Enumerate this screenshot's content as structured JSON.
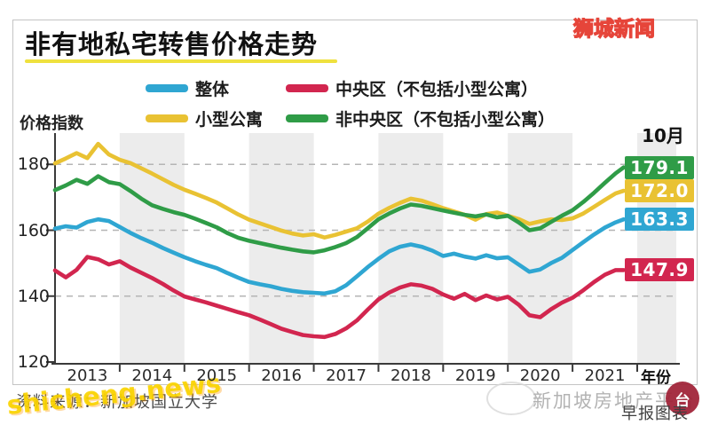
{
  "title": "非有地私宅转售价格走势",
  "brand_watermark": "狮城新闻",
  "diag_watermark": "shicheng.news",
  "source_note": "资料来源：新加坡国立大学",
  "platform_watermark": "新加坡房地产平台",
  "seal_char": "台",
  "credit": "早报图表",
  "y_axis_label": "价格指数",
  "x_axis_label": "年份",
  "end_month_label": "10月",
  "legend": {
    "items": [
      {
        "label": "整体",
        "color": "#2FA6D2"
      },
      {
        "label": "中央区（不包括小型公寓）",
        "color": "#D2264F"
      },
      {
        "label": "小型公寓",
        "color": "#E9C233"
      },
      {
        "label": "非中央区（不包括小型公寓）",
        "color": "#2F9C47"
      }
    ]
  },
  "chart_data": {
    "type": "line",
    "title": "非有地私宅转售价格走势",
    "xlabel": "年份",
    "ylabel": "价格指数",
    "ylim": [
      120,
      189
    ],
    "y_ticks": [
      120,
      140,
      160,
      180
    ],
    "x_tick_years": [
      "2013",
      "2014",
      "2015",
      "2016",
      "2017",
      "2018",
      "2019",
      "2020",
      "2021"
    ],
    "shaded_band_years": [
      "2014",
      "2016",
      "2018",
      "2020"
    ],
    "grid": "dashed-horizontal",
    "x_unit": "months_since_jan_2013",
    "end_point_label": "10月",
    "x_months": [
      0,
      2,
      4,
      6,
      8,
      10,
      12,
      14,
      16,
      18,
      20,
      22,
      24,
      26,
      28,
      30,
      32,
      34,
      36,
      38,
      40,
      42,
      44,
      46,
      48,
      50,
      52,
      54,
      56,
      58,
      60,
      62,
      64,
      66,
      68,
      70,
      72,
      74,
      76,
      78,
      80,
      82,
      84,
      86,
      88,
      90,
      92,
      94,
      96,
      98,
      100,
      102,
      104,
      105.5
    ],
    "series": [
      {
        "name": "整体",
        "color": "#2FA6D2",
        "end_label": "163.3",
        "end_value": 163.3,
        "values": [
          160.5,
          161.2,
          160.8,
          162.5,
          163.3,
          162.8,
          161.0,
          159.2,
          157.6,
          156.2,
          154.6,
          153.2,
          151.8,
          150.6,
          149.5,
          148.5,
          147.0,
          145.6,
          144.3,
          143.6,
          143.0,
          142.2,
          141.6,
          141.2,
          141.0,
          140.8,
          141.5,
          143.3,
          146.0,
          148.8,
          151.3,
          153.6,
          155.0,
          155.7,
          155.0,
          153.8,
          152.2,
          152.9,
          152.0,
          151.4,
          152.4,
          151.5,
          151.8,
          149.6,
          147.4,
          148.1,
          150.0,
          151.6,
          154.0,
          156.4,
          158.7,
          160.8,
          162.4,
          163.3
        ]
      },
      {
        "name": "小型公寓",
        "color": "#E9C233",
        "end_label": "172.0",
        "end_value": 172.0,
        "values": [
          180.3,
          181.8,
          183.4,
          181.9,
          186.2,
          183.0,
          181.4,
          180.4,
          178.8,
          177.2,
          175.5,
          173.8,
          172.3,
          171.1,
          169.8,
          168.4,
          166.6,
          164.8,
          163.2,
          162.1,
          161.0,
          159.9,
          159.0,
          158.4,
          158.8,
          157.8,
          158.6,
          159.6,
          160.6,
          162.6,
          165.0,
          166.8,
          168.3,
          169.6,
          169.0,
          167.9,
          166.7,
          165.7,
          164.7,
          163.2,
          164.9,
          165.4,
          164.4,
          163.4,
          161.9,
          162.7,
          163.3,
          163.1,
          163.6,
          165.1,
          167.1,
          169.2,
          171.2,
          172.0
        ]
      },
      {
        "name": "中央区（不包括小型公寓）",
        "color": "#D2264F",
        "end_label": "147.9",
        "end_value": 147.9,
        "values": [
          147.8,
          145.7,
          148.0,
          151.9,
          151.2,
          149.6,
          150.6,
          148.7,
          147.1,
          145.5,
          143.7,
          141.7,
          139.9,
          139.0,
          138.1,
          137.1,
          136.1,
          135.1,
          134.2,
          132.9,
          131.5,
          130.1,
          129.1,
          128.2,
          127.8,
          127.6,
          128.5,
          130.2,
          132.6,
          135.9,
          139.0,
          141.1,
          142.6,
          143.6,
          143.2,
          142.2,
          140.5,
          139.2,
          140.7,
          138.8,
          140.2,
          139.0,
          139.8,
          137.4,
          134.2,
          133.6,
          136.0,
          138.0,
          139.5,
          141.8,
          144.3,
          146.5,
          147.9,
          147.9
        ]
      },
      {
        "name": "非中央区（不包括小型公寓）",
        "color": "#2F9C47",
        "end_label": "179.1",
        "end_value": 179.1,
        "values": [
          172.2,
          173.6,
          175.3,
          174.1,
          176.4,
          174.6,
          174.0,
          171.9,
          169.6,
          167.6,
          166.5,
          165.5,
          164.7,
          163.5,
          162.2,
          160.9,
          159.1,
          157.7,
          156.8,
          156.1,
          155.4,
          154.7,
          154.1,
          153.6,
          153.3,
          153.9,
          154.9,
          156.1,
          157.9,
          160.6,
          163.3,
          165.1,
          166.6,
          167.8,
          167.4,
          166.7,
          166.0,
          165.3,
          164.7,
          164.2,
          164.8,
          163.9,
          164.4,
          162.4,
          160.0,
          160.6,
          162.5,
          164.4,
          166.1,
          168.6,
          171.4,
          174.4,
          177.3,
          179.1
        ]
      }
    ]
  }
}
